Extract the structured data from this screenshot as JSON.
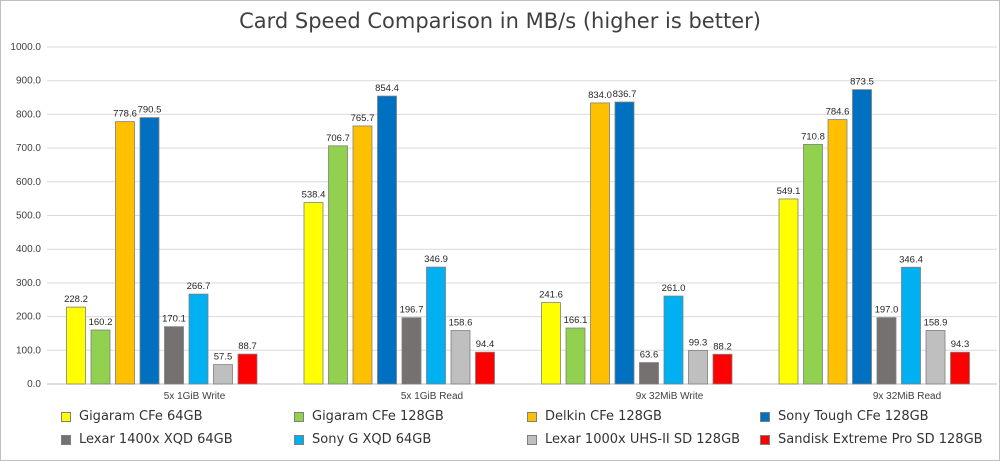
{
  "chart_data": {
    "type": "bar",
    "title": "Card Speed Comparison in MB/s (higher is better)",
    "xlabel": "",
    "ylabel": "",
    "ylim": [
      0,
      1000
    ],
    "yticks": [
      "0.0",
      "100.0",
      "200.0",
      "300.0",
      "400.0",
      "500.0",
      "600.0",
      "700.0",
      "800.0",
      "900.0",
      "1000.0"
    ],
    "grid": true,
    "legend_position": "bottom",
    "categories": [
      "5x 1GiB Write",
      "5x 1GiB Read",
      "9x 32MiB Write",
      "9x 32MiB Read"
    ],
    "series": [
      {
        "name": "Gigaram CFe 64GB",
        "color": "#ffff00",
        "values": [
          228.2,
          538.4,
          241.6,
          549.1
        ],
        "labels": [
          "228.2",
          "538.4",
          "241.6",
          "549.1"
        ]
      },
      {
        "name": "Gigaram CFe 128GB",
        "color": "#92d050",
        "values": [
          160.2,
          706.7,
          166.1,
          710.8
        ],
        "labels": [
          "160.2",
          "706.7",
          "166.1",
          "710.8"
        ]
      },
      {
        "name": "Delkin CFe 128GB",
        "color": "#ffc000",
        "values": [
          778.6,
          765.7,
          834.0,
          784.6
        ],
        "labels": [
          "778.6",
          "765.7",
          "834.0",
          "784.6"
        ]
      },
      {
        "name": "Sony Tough CFe 128GB",
        "color": "#0070c0",
        "values": [
          790.5,
          854.4,
          836.7,
          873.5
        ],
        "labels": [
          "790.5",
          "854.4",
          "836.7",
          "873.5"
        ]
      },
      {
        "name": "Lexar 1400x XQD 64GB",
        "color": "#767171",
        "values": [
          170.1,
          196.7,
          63.6,
          197.0
        ],
        "labels": [
          "170.1",
          "196.7",
          "63.6",
          "197.0"
        ]
      },
      {
        "name": "Sony G XQD 64GB",
        "color": "#00b0f0",
        "values": [
          266.7,
          346.9,
          261.0,
          346.4
        ],
        "labels": [
          "266.7",
          "346.9",
          "261.0",
          "346.4"
        ]
      },
      {
        "name": "Lexar 1000x UHS-II SD 128GB",
        "color": "#bfbfbf",
        "values": [
          57.5,
          158.6,
          99.3,
          158.9
        ],
        "labels": [
          "57.5",
          "158.6",
          "99.3",
          "158.9"
        ]
      },
      {
        "name": "Sandisk Extreme Pro SD 128GB",
        "color": "#ff0000",
        "values": [
          88.7,
          94.4,
          88.2,
          94.3
        ],
        "labels": [
          "88.7",
          "94.4",
          "88.2",
          "94.3"
        ]
      }
    ]
  }
}
